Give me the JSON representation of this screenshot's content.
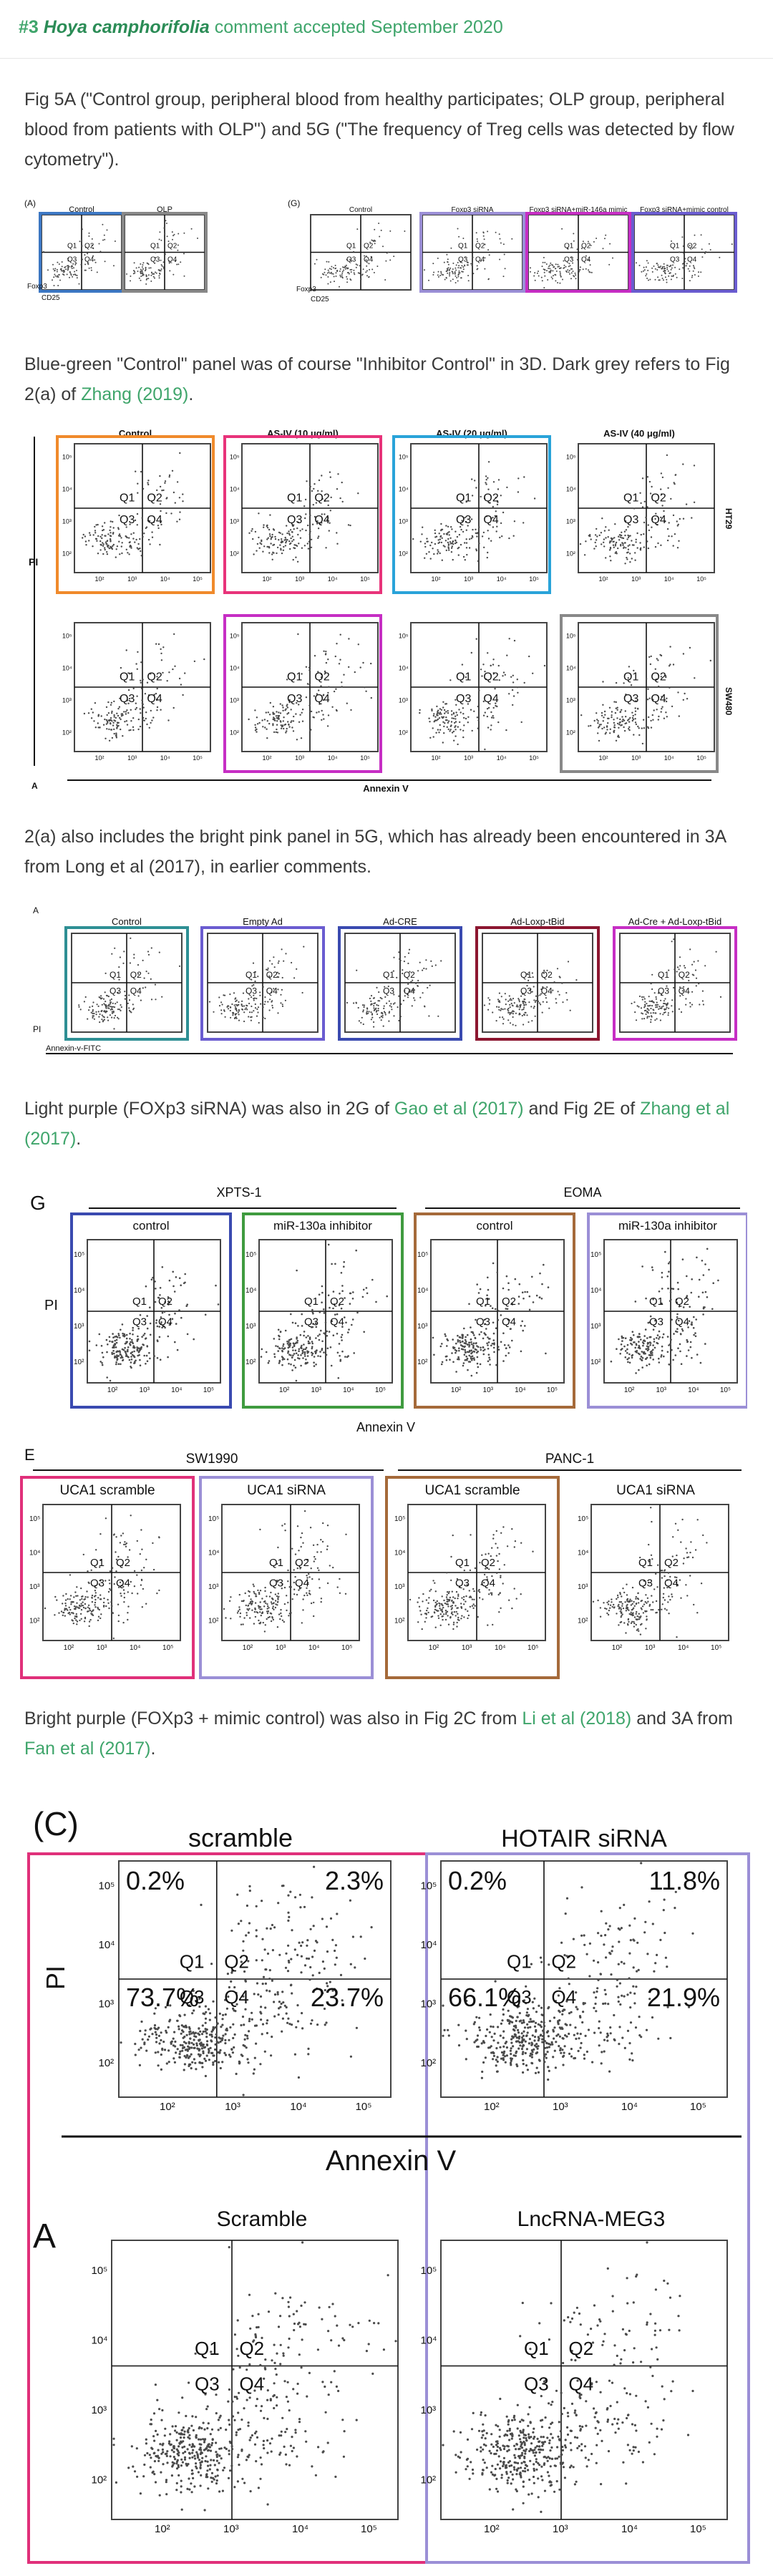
{
  "header": {
    "num": "#3",
    "species": "Hoya camphorifolia",
    "status": "comment accepted September 2020"
  },
  "paragraphs": {
    "p1": "Fig 5A (\"Control group, peripheral blood from healthy participates; OLP group, peripheral blood from patients with OLP\") and 5G (\"The frequency of Treg cells was detected by flow cytometry\").",
    "p2_before": "Blue-green \"Control\" panel was of course \"Inhibitor Control\" in 3D. Dark grey refers to Fig 2(a) of ",
    "p2_link": "Zhang (2019)",
    "p2_after": ".",
    "p3": "2(a) also includes the bright pink panel in 5G, which has already been encountered in 3A from Long et al (2017), in earlier comments.",
    "p4_before": "Light purple (FOXp3 siRNA) was also in 2G of ",
    "p4_link1": "Gao et al (2017)",
    "p4_mid": " and Fig 2E of ",
    "p4_link2": "Zhang et al (2017)",
    "p4_after": ".",
    "p5_before": "Bright purple (FOXp3 + mimic control) was also in Fig 2C from ",
    "p5_link1": "Li et al (2018)",
    "p5_mid": " and 3A from ",
    "p5_link2": "Fan et al (2017)",
    "p5_after": "."
  },
  "fig1": {
    "panelA": "(A)",
    "panelG": "(G)",
    "titles": [
      "Control",
      "OLP",
      "Control",
      "Foxp3 siRNA",
      "Foxp3 siRNA+miR-146a mimic",
      "Foxp3 siRNA+mimic control"
    ],
    "ylabel": "Foxp3",
    "xlabel": "CD25",
    "q": [
      "Q1",
      "Q2",
      "Q3",
      "Q4"
    ]
  },
  "fig2": {
    "titles": [
      "Control",
      "AS-IV (10 μg/ml)",
      "AS-IV (20 μg/ml)",
      "AS-IV (40 μg/ml)"
    ],
    "rows": [
      "HT29",
      "SW480"
    ],
    "ylabel": "PI",
    "xlabel": "Annexin V",
    "panel": "A",
    "q": [
      "Q1",
      "Q2",
      "Q3",
      "Q4"
    ]
  },
  "fig3": {
    "panel": "A",
    "titles": [
      "Control",
      "Empty Ad",
      "Ad-CRE",
      "Ad-Loxp-tBid",
      "Ad-Cre + Ad-Loxp-tBid"
    ],
    "ylabel": "PI",
    "xlabel": "Annexin-v-FITC",
    "q": [
      "Q1",
      "Q2",
      "Q3",
      "Q4"
    ]
  },
  "fig4": {
    "panel": "G",
    "groups": [
      "XPTS-1",
      "EOMA"
    ],
    "titles": [
      "control",
      "miR-130a inhibitor",
      "control",
      "miR-130a inhibitor"
    ],
    "ylabel": "PI",
    "xlabel": "Annexin V",
    "q": [
      "Q1",
      "Q2",
      "Q3",
      "Q4"
    ]
  },
  "fig5": {
    "panel": "E",
    "groups": [
      "SW1990",
      "PANC-1"
    ],
    "titles": [
      "UCA1 scramble",
      "UCA1 siRNA",
      "UCA1 scramble",
      "UCA1 siRNA"
    ],
    "q": [
      "Q1",
      "Q2",
      "Q3",
      "Q4"
    ]
  },
  "fig6": {
    "panelC": "(C)",
    "panelA": "A",
    "titles_top": [
      "scramble",
      "HOTAIR siRNA"
    ],
    "titles_bottom": [
      "Scramble",
      "LncRNA-MEG3"
    ],
    "ylabel": "PI",
    "xlabel": "Annexin V",
    "q": [
      "Q1",
      "Q2",
      "Q3",
      "Q4"
    ],
    "pcts_left": [
      "0.2%",
      "2.3%",
      "73.7%",
      "23.7%"
    ],
    "pcts_right": [
      "0.2%",
      "11.8%",
      "66.1%",
      "21.9%"
    ]
  },
  "colors": {
    "text": "#3a3a3a",
    "link": "#3fa56b",
    "teal": "#2e8f94",
    "blue": "#3d78c4",
    "lightBlue": "#29a3d9",
    "pink": "#e8337a",
    "magenta": "#c62ec4",
    "lavender": "#9b8fd6",
    "purple": "#6a5cd0",
    "orange": "#f08a2b",
    "grey": "#888888",
    "darkRed": "#8c1630",
    "green": "#3f9b3f",
    "brown": "#a56a3a",
    "navy": "#3a4ab0",
    "hotPink": "#e0307a"
  }
}
